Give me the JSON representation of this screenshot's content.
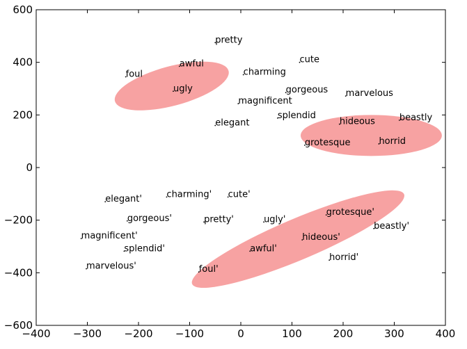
{
  "chart_data": {
    "type": "scatter",
    "xlim": [
      -400,
      400
    ],
    "ylim": [
      -600,
      600
    ],
    "x_ticks": [
      -400,
      -300,
      -200,
      -100,
      0,
      100,
      200,
      300,
      400
    ],
    "y_ticks": [
      -600,
      -400,
      -200,
      0,
      200,
      400,
      600
    ],
    "grid": false,
    "clusters": [
      {
        "cx": -135,
        "cy": 310,
        "rx": 115,
        "ry": 75,
        "angle_deg": 15
      },
      {
        "cx": 255,
        "cy": 122,
        "rx": 138,
        "ry": 78,
        "angle_deg": 0
      },
      {
        "cx": 112,
        "cy": -272,
        "rx": 225,
        "ry": 78,
        "angle_deg": 23
      }
    ],
    "points": [
      {
        "label": "pretty",
        "x": -50,
        "y": 475
      },
      {
        "label": "cute",
        "x": 115,
        "y": 400
      },
      {
        "label": "awful",
        "x": -120,
        "y": 385
      },
      {
        "label": "charming",
        "x": 5,
        "y": 353
      },
      {
        "label": "foul",
        "x": -225,
        "y": 345
      },
      {
        "label": "ugly",
        "x": -132,
        "y": 290
      },
      {
        "label": "gorgeous",
        "x": 88,
        "y": 285
      },
      {
        "label": "marvelous",
        "x": 205,
        "y": 272
      },
      {
        "label": "magnificent",
        "x": -5,
        "y": 243
      },
      {
        "label": "splendid",
        "x": 72,
        "y": 188
      },
      {
        "label": "beastly",
        "x": 310,
        "y": 180
      },
      {
        "label": "elegant",
        "x": -50,
        "y": 160
      },
      {
        "label": "hideous",
        "x": 193,
        "y": 165
      },
      {
        "label": "grotesque",
        "x": 125,
        "y": 85
      },
      {
        "label": "horrid",
        "x": 270,
        "y": 90
      },
      {
        "label": "charming'",
        "x": -145,
        "y": -112
      },
      {
        "label": "cute'",
        "x": -25,
        "y": -112
      },
      {
        "label": "elegant'",
        "x": -265,
        "y": -130
      },
      {
        "label": "gorgeous'",
        "x": -222,
        "y": -203
      },
      {
        "label": "grotesque'",
        "x": 167,
        "y": -180
      },
      {
        "label": "pretty'",
        "x": -72,
        "y": -207
      },
      {
        "label": "ugly'",
        "x": 45,
        "y": -207
      },
      {
        "label": "beastly'",
        "x": 260,
        "y": -232
      },
      {
        "label": "magnificent'",
        "x": -312,
        "y": -270
      },
      {
        "label": "hideous'",
        "x": 120,
        "y": -275
      },
      {
        "label": "awful'",
        "x": 18,
        "y": -318
      },
      {
        "label": "splendid'",
        "x": -228,
        "y": -318
      },
      {
        "label": "horrid'",
        "x": 173,
        "y": -352
      },
      {
        "label": "marvelous'",
        "x": -302,
        "y": -385
      },
      {
        "label": "foul'",
        "x": -82,
        "y": -397
      }
    ]
  }
}
